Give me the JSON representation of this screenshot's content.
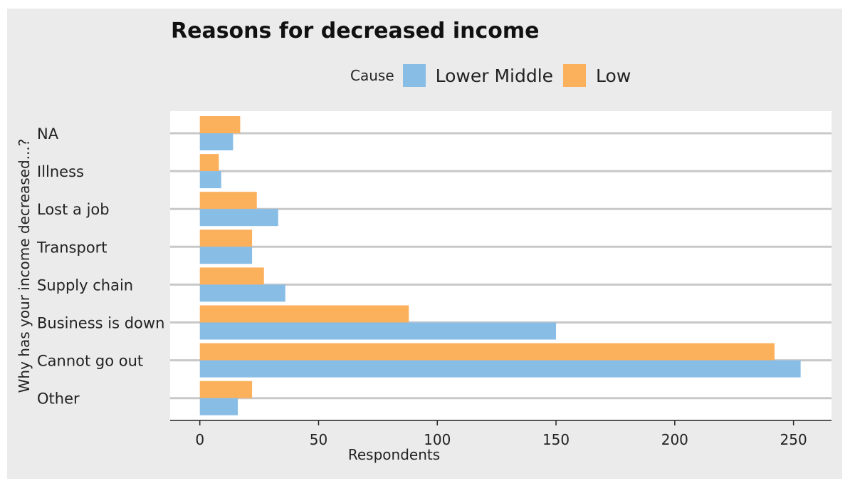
{
  "chart_data": {
    "type": "bar",
    "orientation": "horizontal",
    "title": "Reasons for decreased income",
    "xlabel": "Respondents",
    "ylabel": "Why has your income decreased...?",
    "categories": [
      "NA",
      "Illness",
      "Lost a job",
      "Transport",
      "Supply chain",
      "Business is down",
      "Cannot go out",
      "Other"
    ],
    "series": [
      {
        "name": "Low",
        "color": "#fbb05c",
        "values": [
          17,
          8,
          24,
          22,
          27,
          88,
          242,
          22
        ]
      },
      {
        "name": "Lower Middle",
        "color": "#88bde6",
        "values": [
          14,
          9,
          33,
          22,
          36,
          150,
          253,
          16
        ]
      }
    ],
    "xlim": [
      -12.5,
      266
    ],
    "xticks": [
      0,
      50,
      100,
      150,
      200,
      250
    ],
    "legend": {
      "title": "Cause",
      "placement": "top",
      "order": [
        "Lower Middle",
        "Low"
      ]
    },
    "grid": true
  }
}
